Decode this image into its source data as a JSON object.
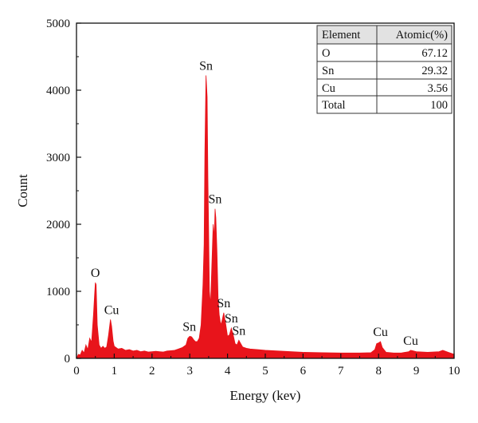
{
  "chart_data": {
    "type": "area",
    "xlabel": "Energy (kev)",
    "ylabel": "Count",
    "xlim": [
      0,
      10
    ],
    "ylim": [
      0,
      5000
    ],
    "x_ticks": [
      "0",
      "1",
      "2",
      "3",
      "4",
      "5",
      "6",
      "7",
      "8",
      "9",
      "10"
    ],
    "y_ticks": [
      "0",
      "1000",
      "2000",
      "3000",
      "4000",
      "5000"
    ],
    "grid": false,
    "series_color": "#e8141b",
    "spectrum": [
      [
        0,
        0
      ],
      [
        0.05,
        60
      ],
      [
        0.1,
        50
      ],
      [
        0.15,
        120
      ],
      [
        0.2,
        80
      ],
      [
        0.25,
        200
      ],
      [
        0.3,
        130
      ],
      [
        0.35,
        300
      ],
      [
        0.4,
        240
      ],
      [
        0.45,
        650
      ],
      [
        0.48,
        950
      ],
      [
        0.5,
        1130
      ],
      [
        0.52,
        1100
      ],
      [
        0.55,
        500
      ],
      [
        0.6,
        200
      ],
      [
        0.65,
        150
      ],
      [
        0.7,
        180
      ],
      [
        0.75,
        150
      ],
      [
        0.8,
        170
      ],
      [
        0.85,
        350
      ],
      [
        0.9,
        580
      ],
      [
        0.93,
        480
      ],
      [
        0.97,
        260
      ],
      [
        1.0,
        180
      ],
      [
        1.1,
        140
      ],
      [
        1.2,
        150
      ],
      [
        1.3,
        120
      ],
      [
        1.4,
        130
      ],
      [
        1.5,
        110
      ],
      [
        1.6,
        120
      ],
      [
        1.7,
        100
      ],
      [
        1.8,
        110
      ],
      [
        1.9,
        95
      ],
      [
        2.0,
        100
      ],
      [
        2.1,
        105
      ],
      [
        2.2,
        100
      ],
      [
        2.3,
        95
      ],
      [
        2.4,
        110
      ],
      [
        2.5,
        115
      ],
      [
        2.6,
        120
      ],
      [
        2.7,
        140
      ],
      [
        2.8,
        160
      ],
      [
        2.9,
        200
      ],
      [
        2.95,
        300
      ],
      [
        3.0,
        330
      ],
      [
        3.05,
        320
      ],
      [
        3.1,
        280
      ],
      [
        3.15,
        250
      ],
      [
        3.2,
        250
      ],
      [
        3.25,
        300
      ],
      [
        3.3,
        500
      ],
      [
        3.35,
        1100
      ],
      [
        3.38,
        1700
      ],
      [
        3.4,
        3050
      ],
      [
        3.43,
        4220
      ],
      [
        3.46,
        3900
      ],
      [
        3.48,
        2700
      ],
      [
        3.5,
        1900
      ],
      [
        3.52,
        1000
      ],
      [
        3.55,
        800
      ],
      [
        3.58,
        1300
      ],
      [
        3.62,
        2000
      ],
      [
        3.65,
        1800
      ],
      [
        3.67,
        2230
      ],
      [
        3.69,
        2100
      ],
      [
        3.72,
        1600
      ],
      [
        3.75,
        900
      ],
      [
        3.78,
        650
      ],
      [
        3.82,
        500
      ],
      [
        3.85,
        550
      ],
      [
        3.9,
        680
      ],
      [
        3.95,
        520
      ],
      [
        4.0,
        330
      ],
      [
        4.05,
        350
      ],
      [
        4.1,
        450
      ],
      [
        4.15,
        350
      ],
      [
        4.2,
        220
      ],
      [
        4.25,
        200
      ],
      [
        4.3,
        270
      ],
      [
        4.35,
        220
      ],
      [
        4.4,
        170
      ],
      [
        4.5,
        150
      ],
      [
        4.6,
        140
      ],
      [
        4.8,
        130
      ],
      [
        5.0,
        120
      ],
      [
        5.5,
        105
      ],
      [
        6.0,
        90
      ],
      [
        6.5,
        85
      ],
      [
        7.0,
        80
      ],
      [
        7.5,
        80
      ],
      [
        7.8,
        85
      ],
      [
        7.9,
        130
      ],
      [
        7.95,
        220
      ],
      [
        8.0,
        230
      ],
      [
        8.05,
        250
      ],
      [
        8.1,
        160
      ],
      [
        8.2,
        90
      ],
      [
        8.4,
        80
      ],
      [
        8.6,
        80
      ],
      [
        8.8,
        100
      ],
      [
        8.85,
        120
      ],
      [
        8.9,
        115
      ],
      [
        9.0,
        100
      ],
      [
        9.3,
        90
      ],
      [
        9.6,
        100
      ],
      [
        9.7,
        120
      ],
      [
        9.75,
        110
      ],
      [
        9.85,
        90
      ],
      [
        10.0,
        60
      ]
    ],
    "annotations": [
      {
        "text": "O",
        "x": 0.5,
        "y": 1130
      },
      {
        "text": "Cu",
        "x": 0.93,
        "y": 580
      },
      {
        "text": "Sn",
        "x": 3.43,
        "y": 4220
      },
      {
        "text": "Sn",
        "x": 3.67,
        "y": 2230
      },
      {
        "text": "Sn",
        "x": 2.99,
        "y": 330
      },
      {
        "text": "Sn",
        "x": 3.9,
        "y": 680
      },
      {
        "text": "Sn",
        "x": 4.1,
        "y": 450
      },
      {
        "text": "Sn",
        "x": 4.3,
        "y": 270
      },
      {
        "text": "Cu",
        "x": 8.05,
        "y": 250
      },
      {
        "text": "Cu",
        "x": 8.85,
        "y": 120
      }
    ],
    "table": {
      "headers": [
        "Element",
        "Atomic(%)"
      ],
      "rows": [
        [
          "O",
          "67.12"
        ],
        [
          "Sn",
          "29.32"
        ],
        [
          "Cu",
          "3.56"
        ],
        [
          "Total",
          "100"
        ]
      ]
    }
  }
}
